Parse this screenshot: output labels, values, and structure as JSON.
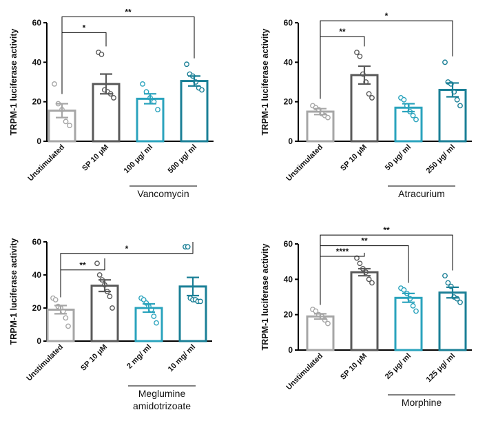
{
  "chart_data": [
    {
      "type": "bar",
      "ylabel": "TRPM-1 luciferase activity",
      "ylim": [
        0,
        60
      ],
      "yticks": [
        "0",
        "20",
        "40",
        "60"
      ],
      "categories": [
        "Unstimulated",
        "SP 10 μM",
        "100 μg/ ml",
        "500 μg/ ml"
      ],
      "group_label": "Vancomycin",
      "group_label_lines": [
        "Vancomycin"
      ],
      "group_span": [
        2,
        3
      ],
      "colors": [
        "#a6a6a6",
        "#595959",
        "#2aa3bd",
        "#1a7f96"
      ],
      "values": [
        15.5,
        29,
        21.5,
        30.5
      ],
      "errors": [
        3.5,
        5,
        2.5,
        2.5
      ],
      "points": [
        [
          29,
          19,
          16,
          10,
          8
        ],
        [
          45,
          44,
          26,
          25,
          24,
          22
        ],
        [
          29,
          25,
          22,
          20,
          16
        ],
        [
          39,
          34,
          33,
          30,
          27,
          26
        ]
      ],
      "significance": [
        {
          "from": 0,
          "to": 1,
          "label": "*",
          "y": 55
        },
        {
          "from": 0,
          "to": 3,
          "label": "**",
          "y": 63
        }
      ]
    },
    {
      "type": "bar",
      "ylabel": "TRPM-1 luciferase activity",
      "ylim": [
        0,
        60
      ],
      "yticks": [
        "0",
        "20",
        "40",
        "60"
      ],
      "categories": [
        "Unstimulated",
        "SP 10 μM",
        "50 μg/ ml",
        "250 μg/ ml"
      ],
      "group_label": "Atracurium",
      "group_label_lines": [
        "Atracurium"
      ],
      "group_span": [
        2,
        3
      ],
      "colors": [
        "#a6a6a6",
        "#595959",
        "#2aa3bd",
        "#1a7f96"
      ],
      "values": [
        15,
        33.5,
        17,
        26
      ],
      "errors": [
        1.5,
        4.5,
        2,
        3.5
      ],
      "points": [
        [
          18,
          17,
          16,
          14,
          13,
          12
        ],
        [
          45,
          43,
          34,
          30,
          24,
          22
        ],
        [
          22,
          21,
          18,
          15,
          13,
          11
        ],
        [
          40,
          30,
          29,
          25,
          21,
          18
        ]
      ],
      "significance": [
        {
          "from": 0,
          "to": 1,
          "label": "**",
          "y": 53
        },
        {
          "from": 0,
          "to": 3,
          "label": "*",
          "y": 61
        }
      ]
    },
    {
      "type": "bar",
      "ylabel": "TRPM-1 luciferase activity",
      "ylim": [
        0,
        60
      ],
      "yticks": [
        "0",
        "20",
        "40",
        "60"
      ],
      "categories": [
        "Unstimulated",
        "SP 10 μM",
        "2 mg/ ml",
        "10 mg/ ml"
      ],
      "group_label": "Meglumine amidotrizoate",
      "group_label_lines": [
        "Meglumine",
        "amidotrizoate"
      ],
      "group_span": [
        2,
        3
      ],
      "colors": [
        "#a6a6a6",
        "#595959",
        "#2aa3bd",
        "#1a7f96"
      ],
      "values": [
        19,
        33.5,
        20,
        33
      ],
      "errors": [
        2.5,
        3.5,
        2.5,
        5.5
      ],
      "points": [
        [
          26,
          25,
          21,
          20,
          18,
          14,
          9
        ],
        [
          47,
          40,
          37,
          34,
          30,
          27,
          20
        ],
        [
          26,
          25,
          23,
          21,
          19,
          15,
          11
        ],
        [
          57,
          57,
          26,
          25,
          25,
          24,
          24
        ]
      ],
      "significance": [
        {
          "from": 0,
          "to": 1,
          "label": "**",
          "y": 43
        },
        {
          "from": 0,
          "to": 3,
          "label": "*",
          "y": 53
        }
      ]
    },
    {
      "type": "bar",
      "ylabel": "TRPM-1 luciferase activity",
      "ylim": [
        0,
        60
      ],
      "yticks": [
        "0",
        "20",
        "40",
        "60"
      ],
      "categories": [
        "Unstimulated",
        "SP 10 μM",
        "25 μg/ ml",
        "125 μg/ ml"
      ],
      "group_label": "Morphine",
      "group_label_lines": [
        "Morphine"
      ],
      "group_span": [
        2,
        3
      ],
      "colors": [
        "#a6a6a6",
        "#595959",
        "#2aa3bd",
        "#1a7f96"
      ],
      "values": [
        19,
        44,
        29.5,
        32.5
      ],
      "errors": [
        1.5,
        2,
        2.5,
        3
      ],
      "points": [
        [
          23,
          22,
          20,
          19,
          17,
          15
        ],
        [
          52,
          49,
          46,
          44,
          40,
          38
        ],
        [
          35,
          34,
          32,
          29,
          25,
          22
        ],
        [
          42,
          38,
          36,
          30,
          29,
          27
        ]
      ],
      "significance": [
        {
          "from": 0,
          "to": 1,
          "label": "****",
          "y": 53
        },
        {
          "from": 0,
          "to": 2,
          "label": "**",
          "y": 59
        },
        {
          "from": 0,
          "to": 3,
          "label": "**",
          "y": 65
        }
      ]
    }
  ]
}
